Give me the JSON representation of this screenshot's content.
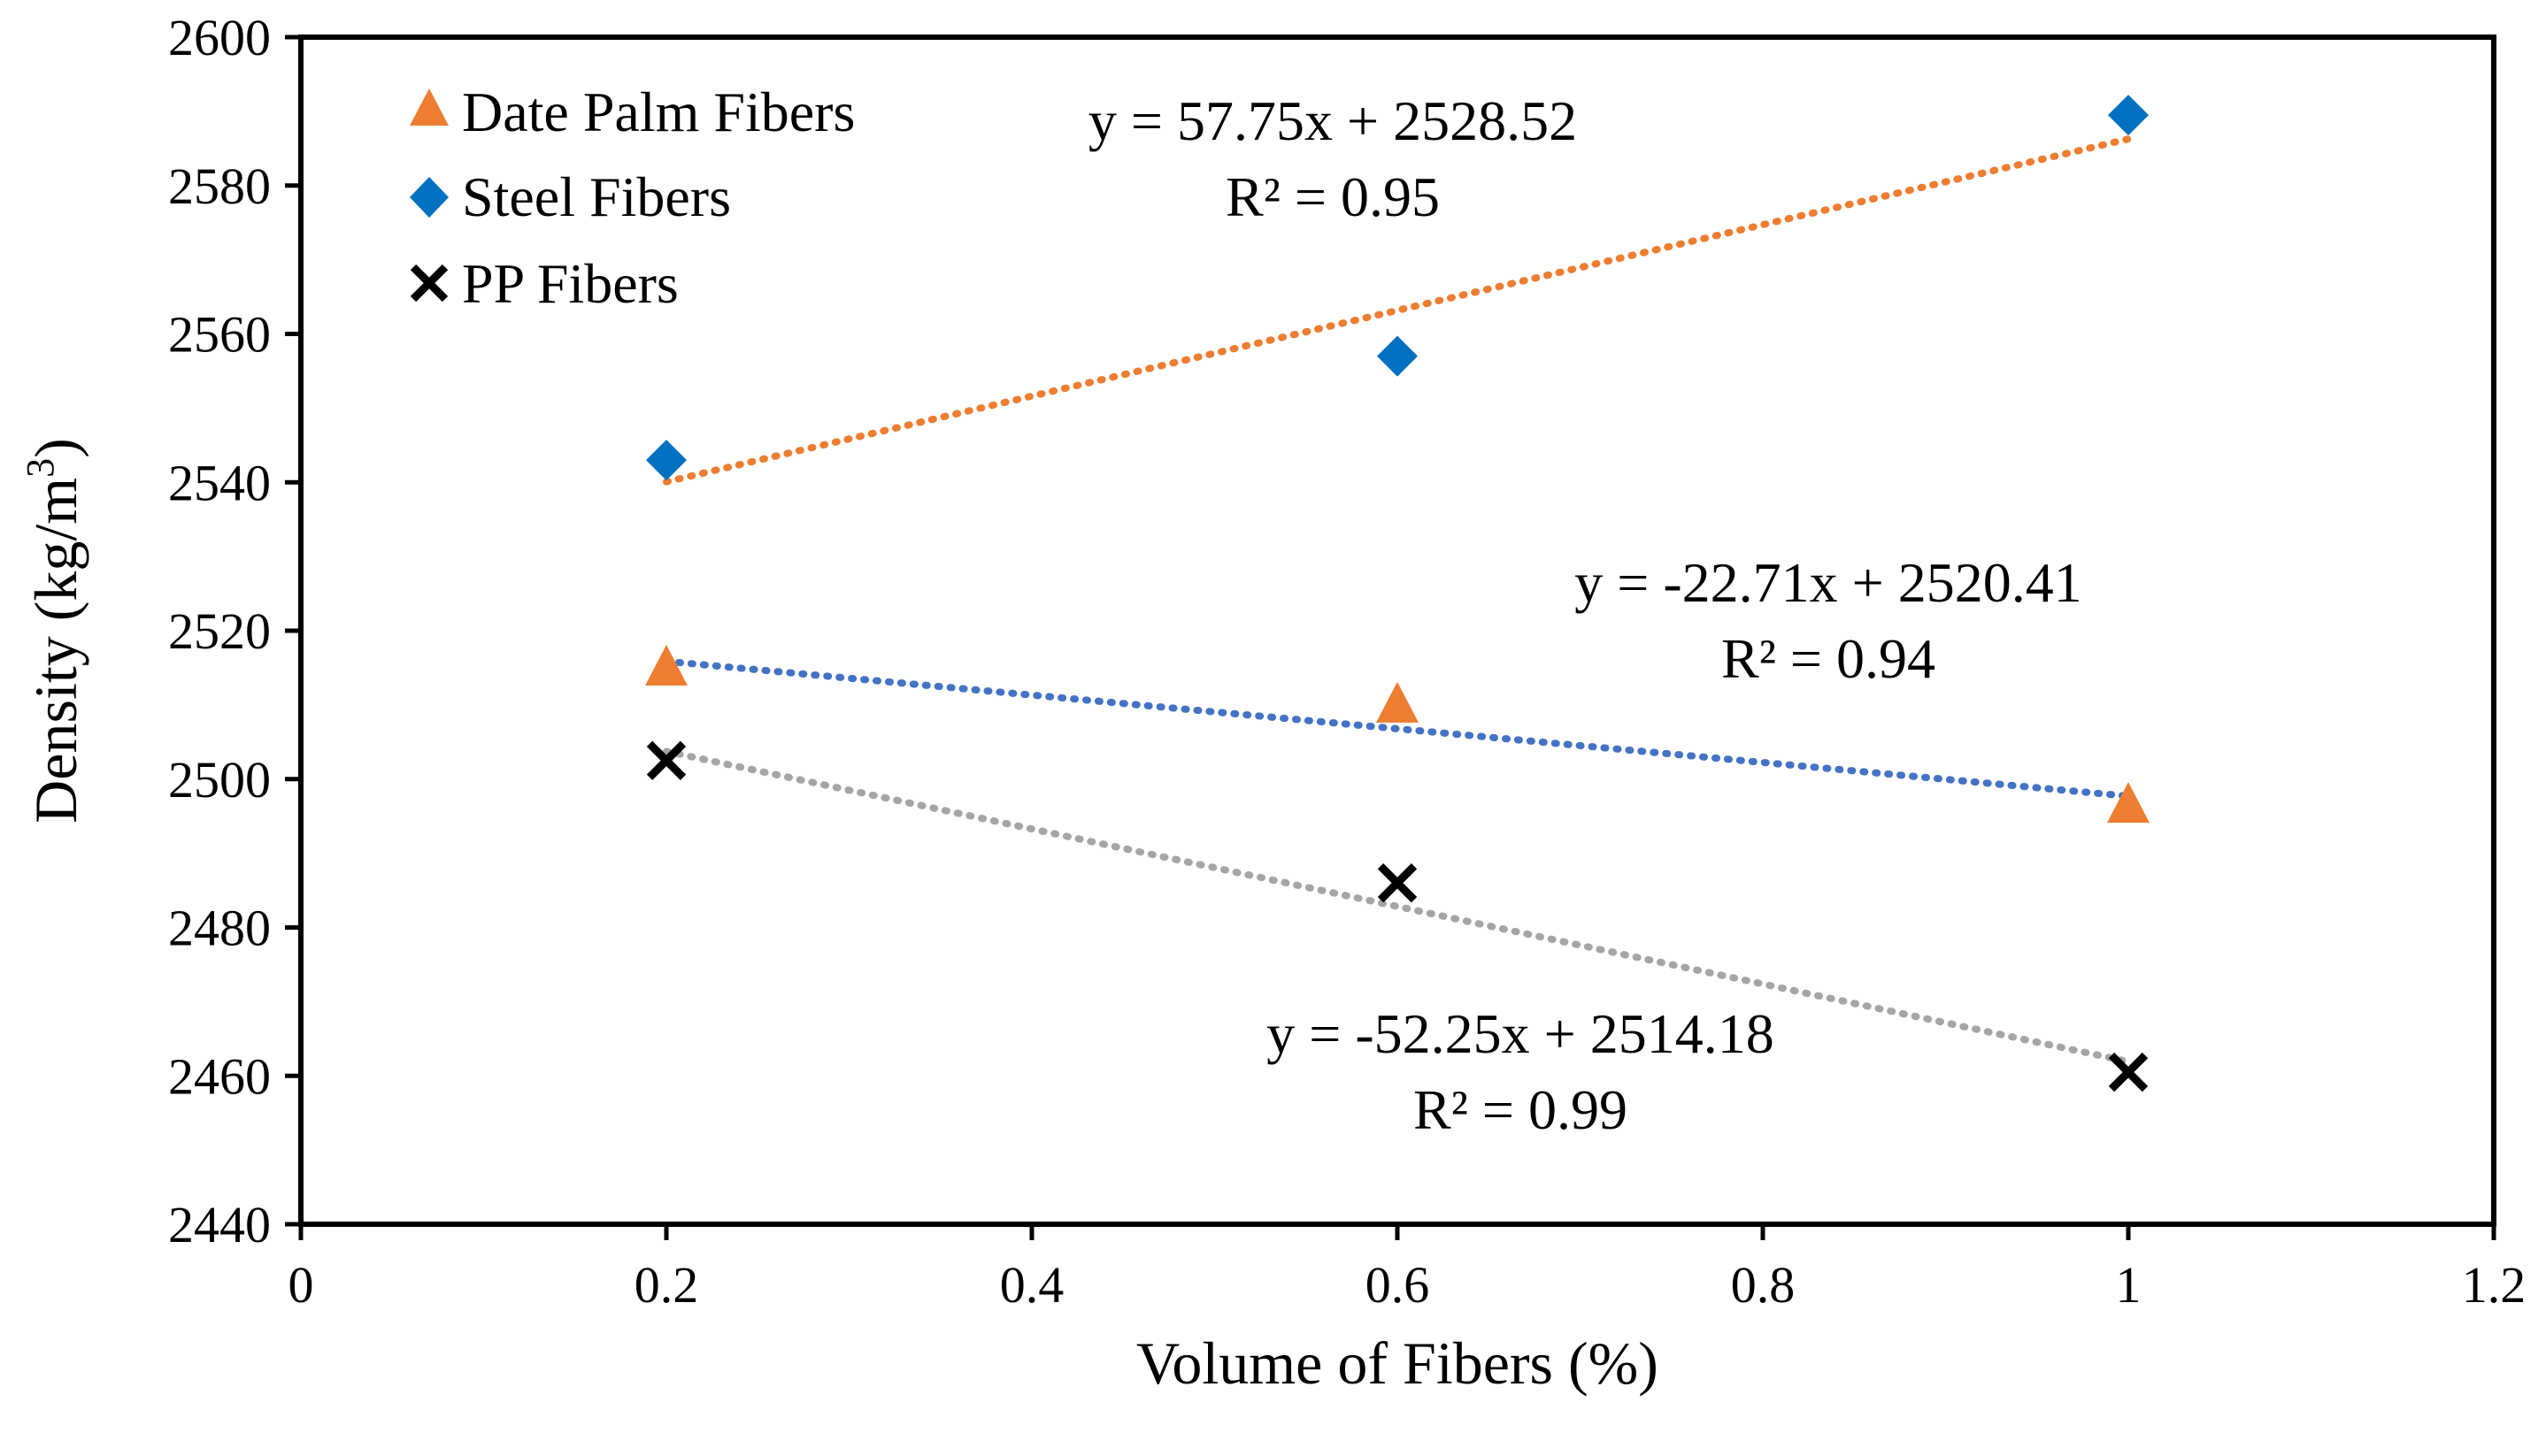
{
  "chart_data": {
    "type": "scatter",
    "title": "",
    "xlabel": "Volume of Fibers (%)",
    "ylabel": "Density (kg/m",
    "ylabel_superscript": "3",
    "ylabel_suffix": ")",
    "xlim": [
      0,
      1.2
    ],
    "ylim": [
      2440,
      2600
    ],
    "x_ticks": [
      0,
      0.2,
      0.4,
      0.6,
      0.8,
      1,
      1.2
    ],
    "x_tick_labels": [
      "0",
      "0.2",
      "0.4",
      "0.6",
      "0.8",
      "1",
      "1.2"
    ],
    "y_ticks": [
      2440,
      2460,
      2480,
      2500,
      2520,
      2540,
      2560,
      2580,
      2600
    ],
    "y_tick_labels": [
      "2440",
      "2460",
      "2480",
      "2500",
      "2520",
      "2540",
      "2560",
      "2580",
      "2600"
    ],
    "grid": false,
    "legend_position": "top-left",
    "series": [
      {
        "name": "Date Palm Fibers",
        "marker": "triangle",
        "color": "#ED7D31",
        "x": [
          0.2,
          0.6,
          1
        ],
        "y": [
          2515,
          2510,
          2496.5
        ]
      },
      {
        "name": "Steel Fibers",
        "marker": "diamond",
        "color": "#0070C0",
        "x": [
          0.2,
          0.6,
          1
        ],
        "y": [
          2543,
          2557,
          2589.5
        ]
      },
      {
        "name": "PP Fibers",
        "marker": "x-cross",
        "color": "#000000",
        "x": [
          0.2,
          0.6,
          1
        ],
        "y": [
          2502.5,
          2486,
          2460.5
        ]
      }
    ],
    "trendlines": [
      {
        "color": "#ED7D31",
        "slope": 57.75,
        "intercept": 2528.52,
        "x_range": [
          0.2,
          1
        ],
        "equation": "y = 57.75x + 2528.52",
        "r2": "R² = 0.95"
      },
      {
        "color": "#4472C4",
        "slope": -22.71,
        "intercept": 2520.41,
        "x_range": [
          0.2,
          1
        ],
        "equation": "y = -22.71x + 2520.41",
        "r2": "R² = 0.94"
      },
      {
        "color": "#A5A5A5",
        "slope": -52.25,
        "intercept": 2514.18,
        "x_range": [
          0.2,
          1
        ],
        "equation": "y = -52.25x + 2514.18",
        "r2": "R² = 0.99"
      }
    ]
  }
}
